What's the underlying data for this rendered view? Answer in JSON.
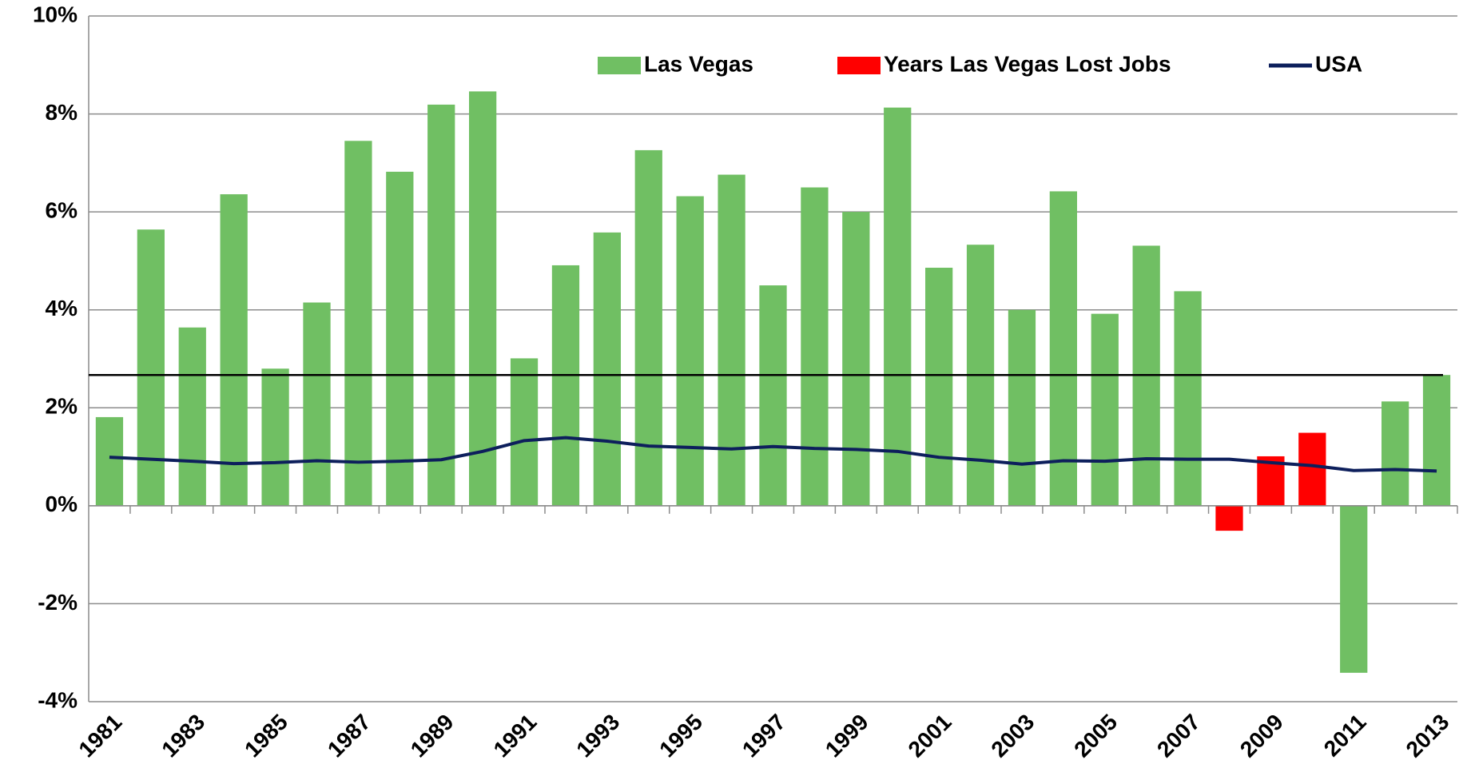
{
  "chart_data": {
    "type": "bar",
    "categories": [
      "1981",
      null,
      "1983",
      null,
      "1985",
      null,
      "1987",
      null,
      "1989",
      null,
      "1991",
      null,
      "1993",
      null,
      "1995",
      null,
      "1997",
      null,
      "1999",
      null,
      "2001",
      null,
      "2003",
      null,
      "2005",
      null,
      "2007",
      null,
      "2009",
      null,
      "2011",
      null,
      "2013"
    ],
    "series": [
      {
        "name": "Las Vegas",
        "type": "bar",
        "color": "#70bf63",
        "values": [
          1.81,
          5.64,
          3.64,
          6.36,
          2.8,
          4.15,
          7.45,
          6.82,
          8.19,
          8.46,
          3.01,
          4.91,
          5.58,
          7.26,
          6.32,
          6.76,
          4.5,
          6.5,
          6.0,
          8.13,
          4.86,
          5.33,
          4.0,
          6.42,
          3.92,
          5.31,
          4.38,
          null,
          null,
          null,
          -3.41,
          2.13,
          2.67
        ]
      },
      {
        "name": "Years Las Vegas Lost Jobs",
        "type": "bar",
        "color": "#ff0000",
        "values": [
          null,
          null,
          null,
          null,
          null,
          null,
          null,
          null,
          null,
          null,
          null,
          null,
          null,
          null,
          null,
          null,
          null,
          null,
          null,
          null,
          null,
          null,
          null,
          null,
          null,
          null,
          null,
          -0.51,
          1.01,
          1.49,
          null,
          null,
          null
        ]
      },
      {
        "name": "USA",
        "type": "line",
        "color": "#0d1f5c",
        "values": [
          0.99,
          0.95,
          0.91,
          0.86,
          0.88,
          0.92,
          0.89,
          0.91,
          0.94,
          1.11,
          1.33,
          1.39,
          1.32,
          1.22,
          1.19,
          1.16,
          1.21,
          1.17,
          1.15,
          1.11,
          0.99,
          0.93,
          0.85,
          0.92,
          0.91,
          0.96,
          0.95,
          0.95,
          0.88,
          0.82,
          0.72,
          0.74,
          0.71
        ]
      }
    ],
    "reference_line": 2.67,
    "reference_color": "#000000",
    "ylim": [
      -4,
      10
    ],
    "yticks": [
      {
        "value": -4,
        "label": "-4%"
      },
      {
        "value": -2,
        "label": "-2%"
      },
      {
        "value": 0,
        "label": "0%"
      },
      {
        "value": 2,
        "label": "2%"
      },
      {
        "value": 4,
        "label": "4%"
      },
      {
        "value": 6,
        "label": "6%"
      },
      {
        "value": 8,
        "label": "8%"
      },
      {
        "value": 10,
        "label": "10%"
      }
    ],
    "grid": true,
    "legend": "top"
  }
}
